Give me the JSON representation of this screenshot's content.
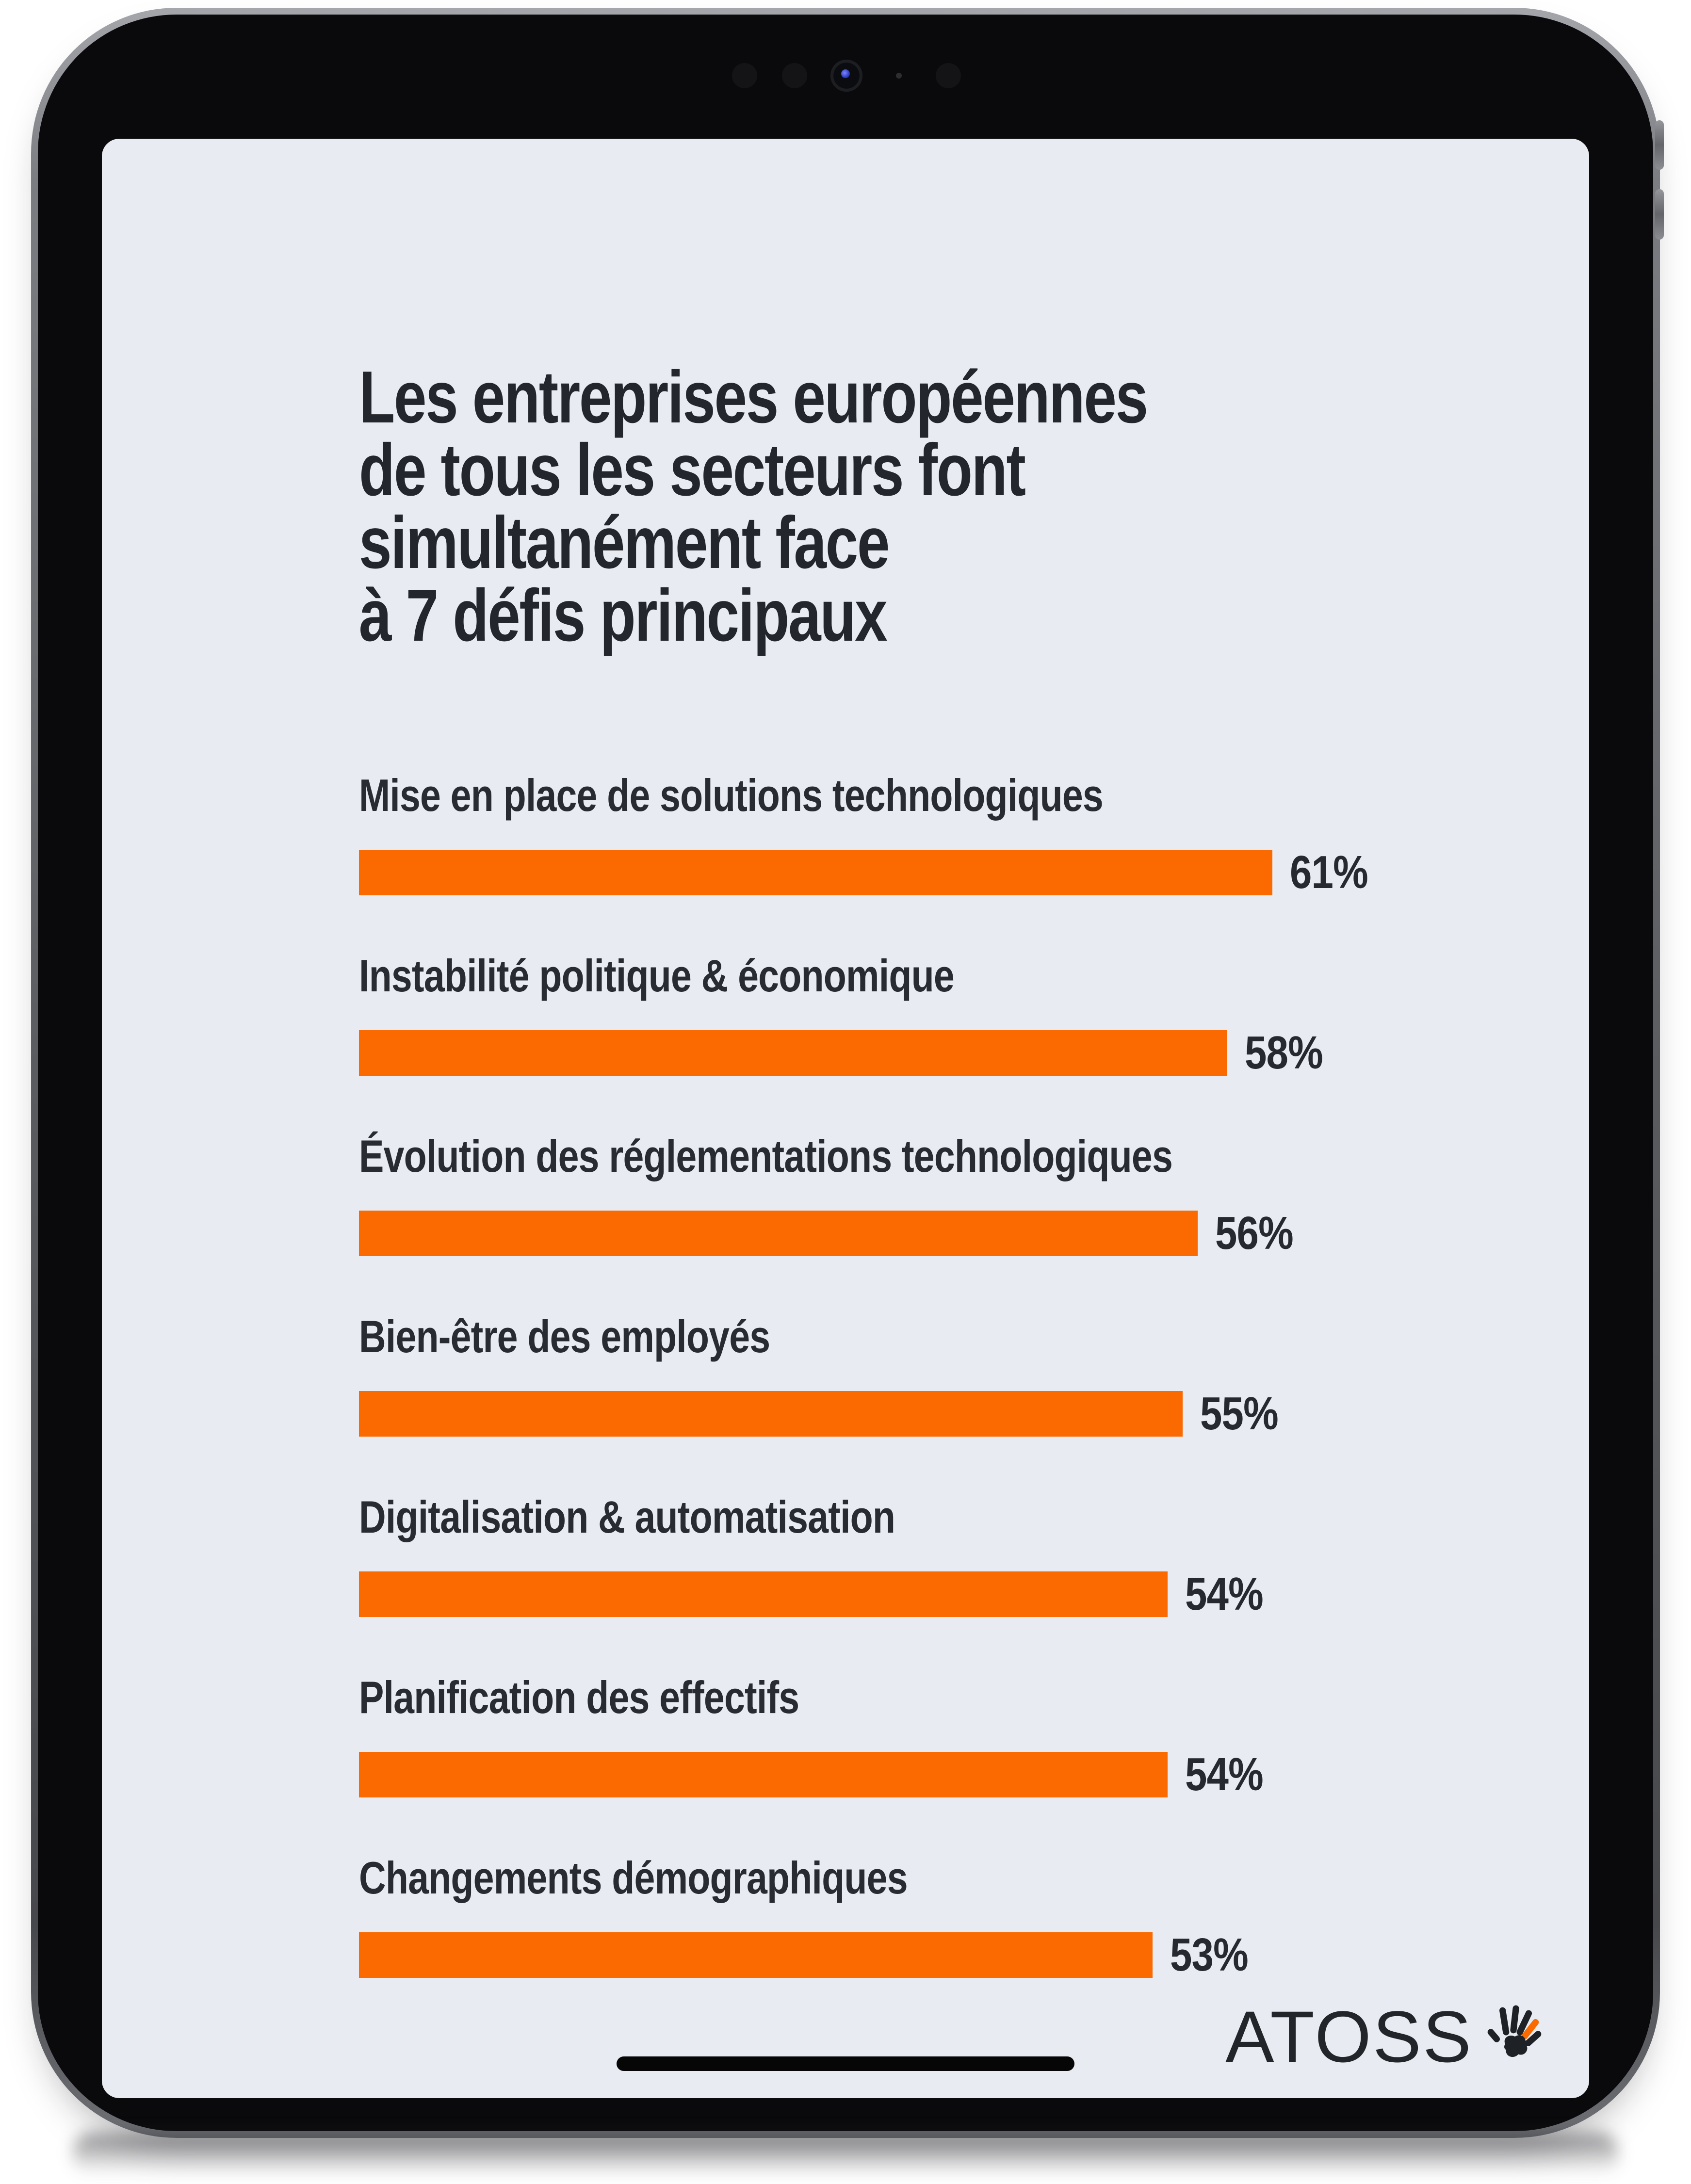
{
  "title": {
    "lines": [
      "Les entreprises européennes",
      "de tous les secteurs font",
      "simultanément face",
      "à 7 défis principaux"
    ]
  },
  "chart_data": {
    "type": "bar",
    "orientation": "horizontal",
    "categories": [
      "Mise en place de solutions technologiques",
      "Instabilité politique & économique",
      "Évolution des réglementations technologiques",
      "Bien-être des employés",
      "Digitalisation & automatisation",
      "Planification des effectifs",
      "Changements démographiques"
    ],
    "values": [
      61,
      58,
      56,
      55,
      54,
      54,
      53
    ],
    "value_suffix": "%",
    "xlim": [
      0,
      100
    ],
    "grid": false,
    "value_label_position": "right-of-bar",
    "bar_color": "#fa6a00",
    "label_color": "#282b31",
    "background": "#e8ebf1"
  },
  "brand": {
    "name": "ATOSS",
    "logo_icon": "handprint-icon",
    "logo_text_color": "#222529",
    "logo_accent_color": "#fa6a00"
  },
  "device": {
    "kind": "tablet-mockup",
    "camera_cluster": [
      "ambient-sensor",
      "ambient-sensor",
      "front-camera-lens",
      "microphone-dot",
      "ambient-sensor"
    ],
    "side_buttons": [
      "volume-up",
      "volume-down"
    ],
    "home_indicator": true
  }
}
